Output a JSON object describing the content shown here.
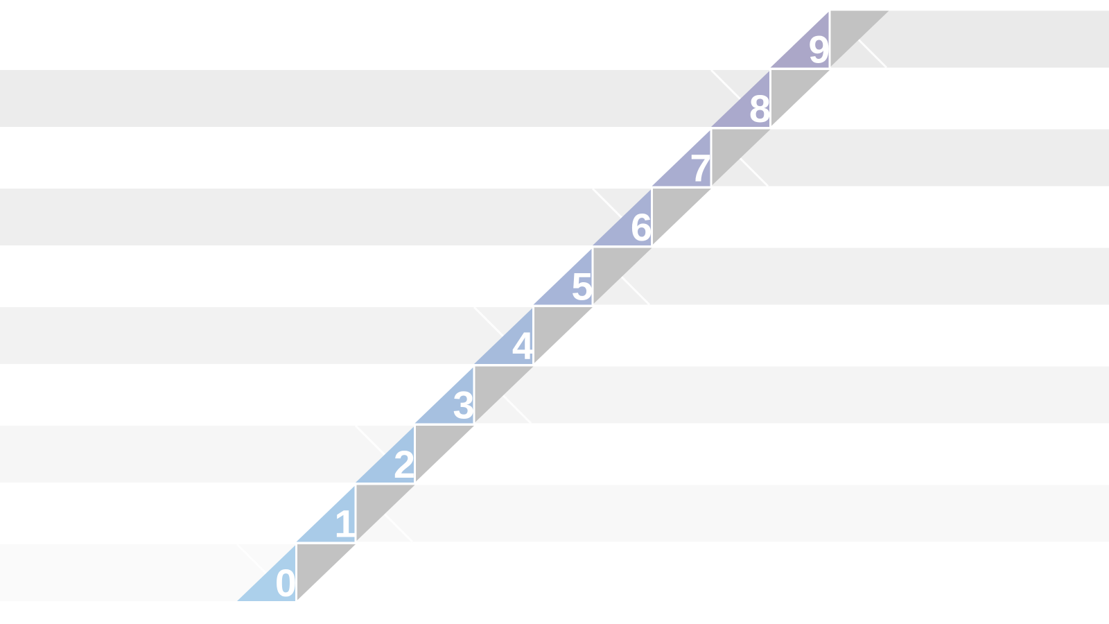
{
  "steps": [
    {
      "label": "0",
      "color": "#acd0eb"
    },
    {
      "label": "1",
      "color": "#a9cbe8"
    },
    {
      "label": "2",
      "color": "#a6c6e5"
    },
    {
      "label": "3",
      "color": "#a6c0e0"
    },
    {
      "label": "4",
      "color": "#a6bbdc"
    },
    {
      "label": "5",
      "color": "#a7b5d8"
    },
    {
      "label": "6",
      "color": "#a8b1d4"
    },
    {
      "label": "7",
      "color": "#a9add0"
    },
    {
      "label": "8",
      "color": "#aaa9cc"
    },
    {
      "label": "9",
      "color": "#aba7c8"
    }
  ],
  "colors": {
    "shadow_square": "#c2c2c2",
    "separator": "#ffffff"
  }
}
